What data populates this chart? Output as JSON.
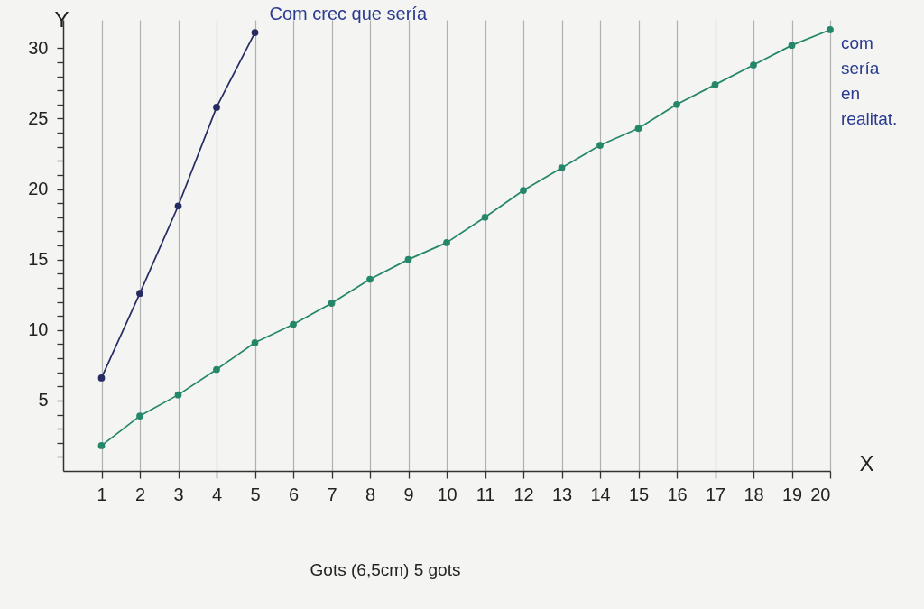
{
  "chart_data": {
    "type": "line",
    "xlabel": "X",
    "ylabel": "Y",
    "series": [
      {
        "name": "Com crec que sería",
        "color": "#262b63",
        "x": [
          1,
          2,
          3,
          4,
          5
        ],
        "values": [
          6.6,
          12.6,
          18.8,
          25.8,
          31.1
        ]
      },
      {
        "name": "com sería en realitat.",
        "color": "#25876a",
        "x": [
          1,
          2,
          3,
          4,
          5,
          6,
          7,
          8,
          9,
          10,
          11,
          12,
          13,
          14,
          15,
          16,
          17,
          18,
          19,
          20
        ],
        "values": [
          1.8,
          3.9,
          5.4,
          7.2,
          9.1,
          10.4,
          11.9,
          13.6,
          15.0,
          16.2,
          18.0,
          19.9,
          21.5,
          23.1,
          24.3,
          26.0,
          27.4,
          28.8,
          30.2,
          31.3
        ]
      }
    ],
    "xlim": [
      0,
      20
    ],
    "ylim": [
      0,
      32
    ],
    "xticks": [
      1,
      2,
      3,
      4,
      5,
      6,
      7,
      8,
      9,
      10,
      11,
      12,
      13,
      14,
      15,
      16,
      17,
      18,
      19,
      20
    ],
    "yticks": [
      {
        "value": 1,
        "label": null
      },
      {
        "value": 2,
        "label": null
      },
      {
        "value": 3,
        "label": null
      },
      {
        "value": 4,
        "label": null
      },
      5,
      {
        "value": 6,
        "label": null
      },
      {
        "value": 7,
        "label": null
      },
      {
        "value": 8,
        "label": null
      },
      {
        "value": 9,
        "label": null
      },
      10,
      {
        "value": 11,
        "label": null
      },
      {
        "value": 12,
        "label": null
      },
      {
        "value": 13,
        "label": null
      },
      {
        "value": 14,
        "label": null
      },
      15,
      {
        "value": 16,
        "label": null
      },
      {
        "value": 17,
        "label": null
      },
      {
        "value": 18,
        "label": null
      },
      {
        "value": 19,
        "label": null
      },
      20,
      {
        "value": 21,
        "label": null
      },
      {
        "value": 22,
        "label": null
      },
      {
        "value": 23,
        "label": null
      },
      {
        "value": 24,
        "label": null
      },
      25,
      {
        "value": 26,
        "label": null
      },
      {
        "value": 27,
        "label": null
      },
      {
        "value": 28,
        "label": null
      },
      {
        "value": 29,
        "label": null
      },
      30
    ],
    "grid": "x",
    "marker": "circle",
    "line_style": "solid",
    "legend": false,
    "annotations": [
      "Gots (6,5cm) 5 gots"
    ]
  }
}
